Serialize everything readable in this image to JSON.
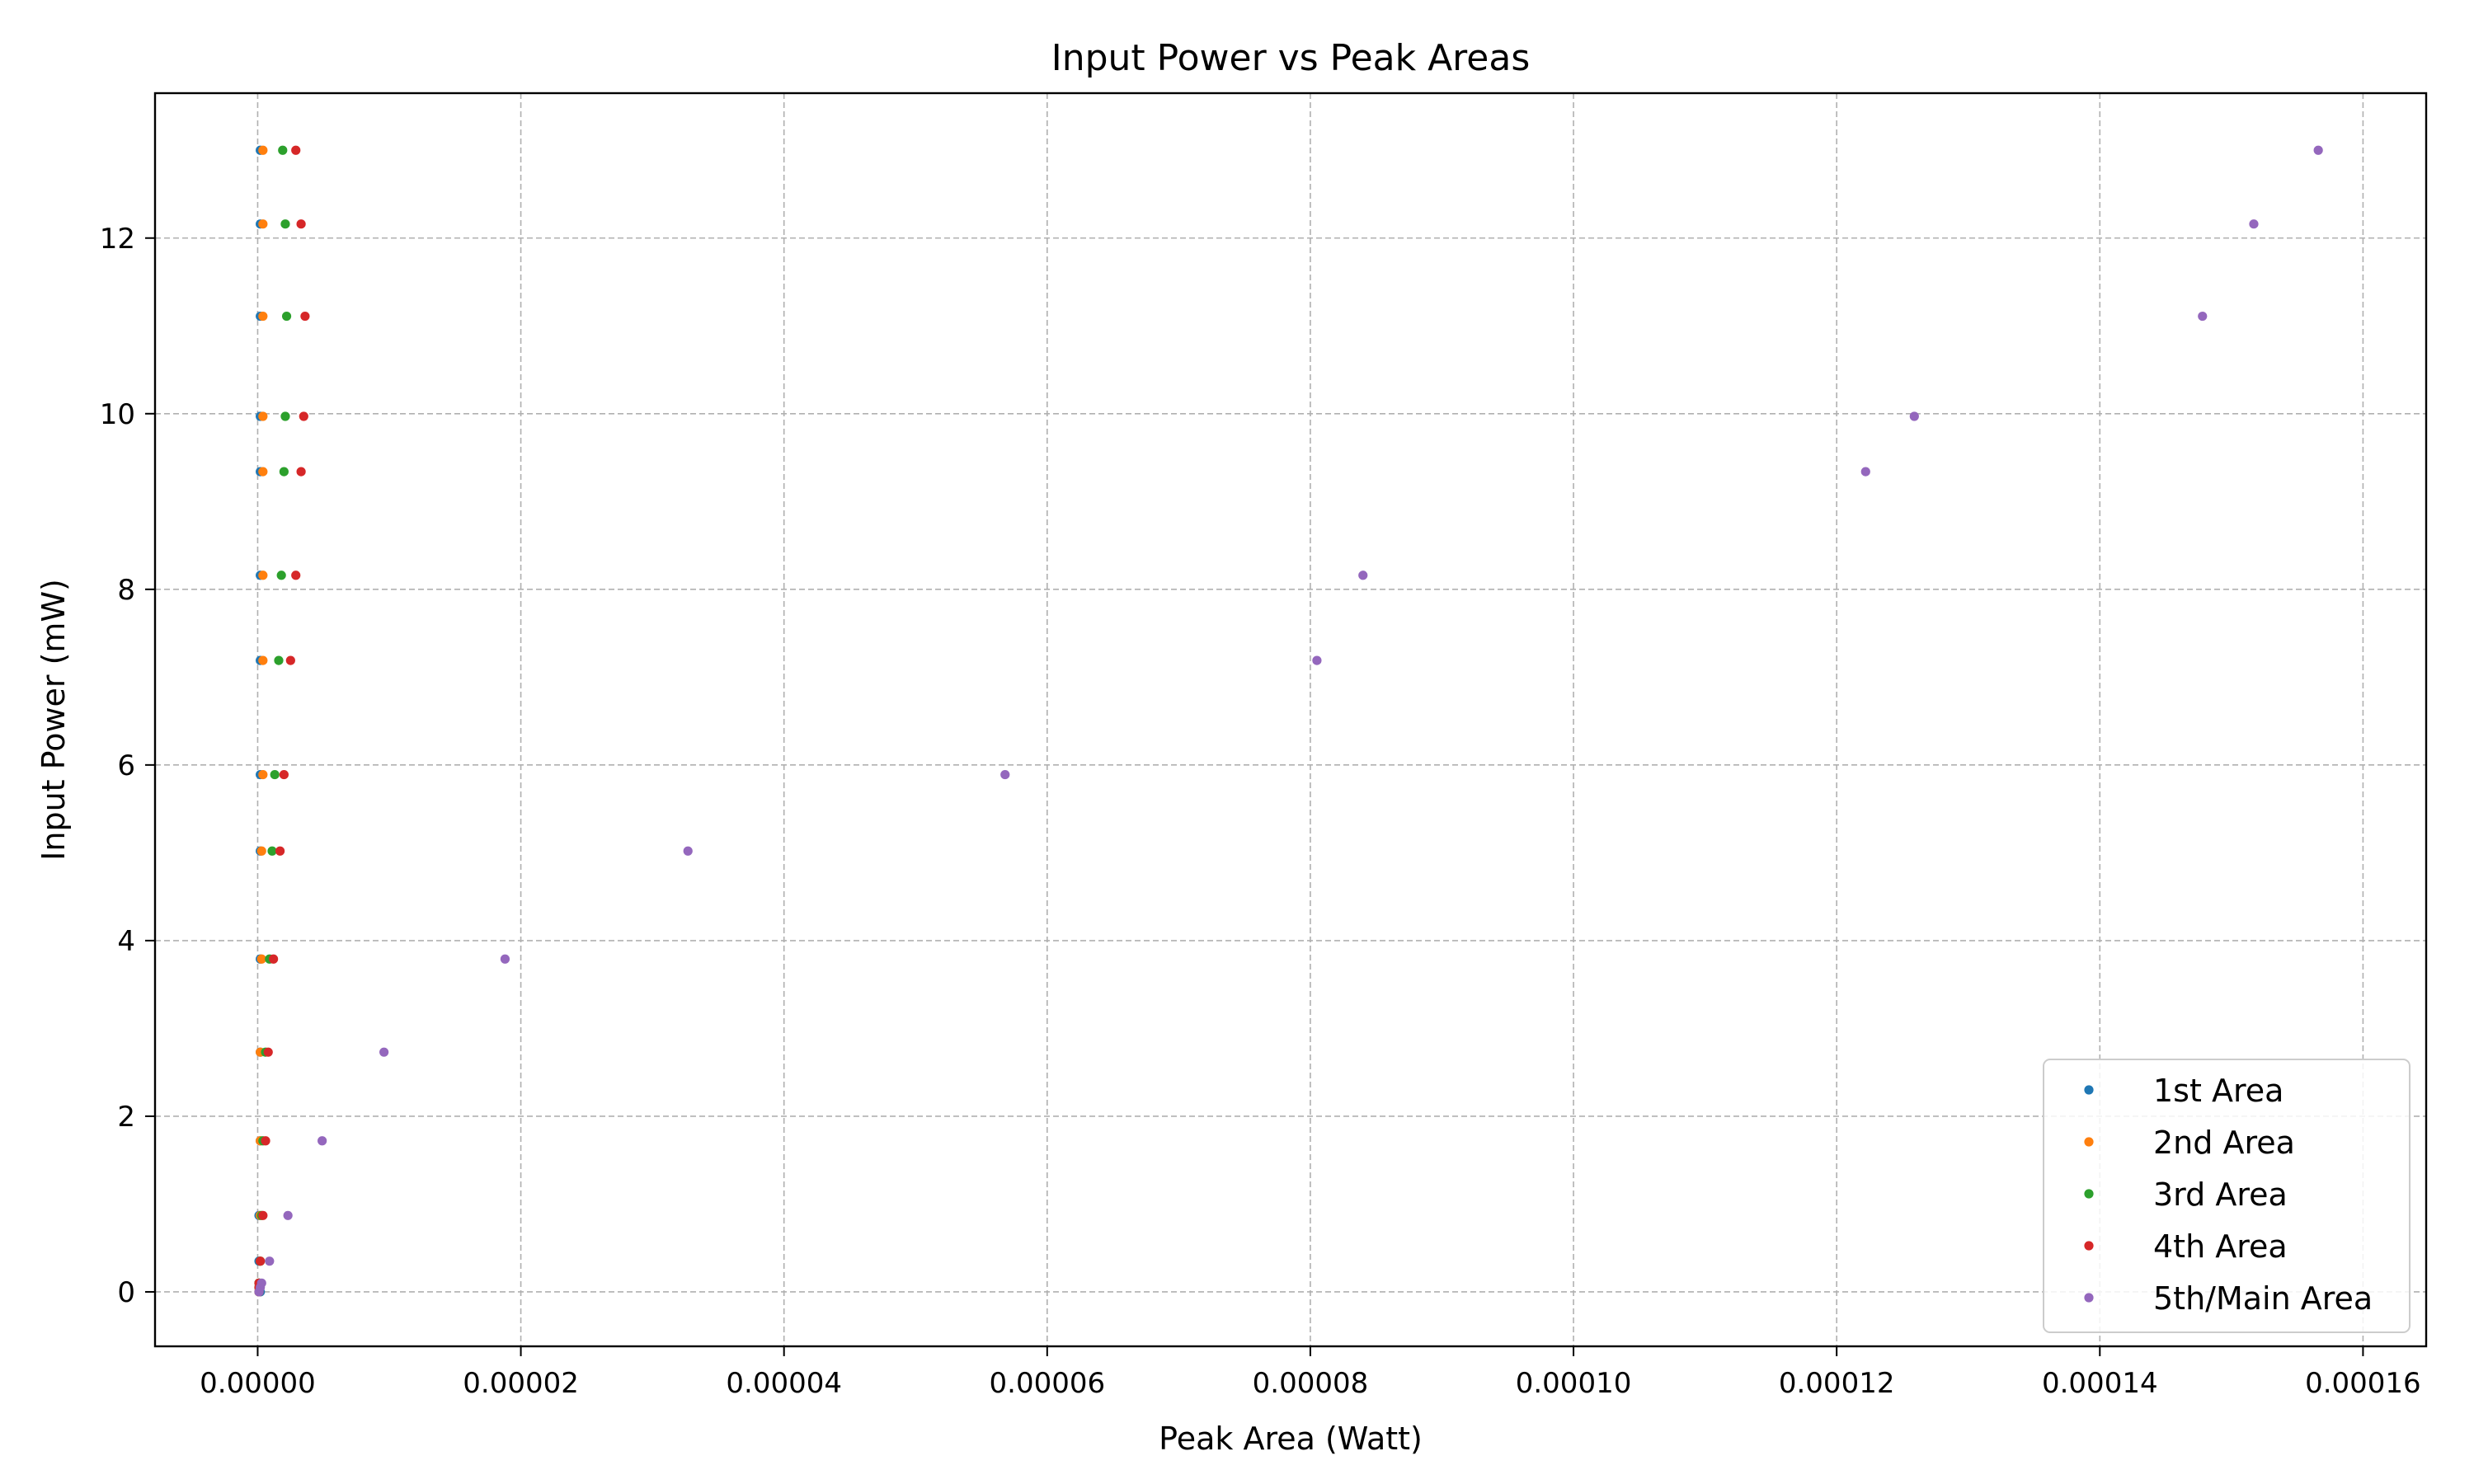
{
  "chart_data": {
    "type": "scatter",
    "title": "Input Power vs Peak Areas",
    "xlabel": "Peak Area (Watt)",
    "ylabel": "Input Power (mW)",
    "xlim": [
      -7.8e-06,
      0.0001648
    ],
    "ylim": [
      -0.62,
      13.65
    ],
    "xticks": [
      0,
      2e-05,
      4e-05,
      6e-05,
      8e-05,
      0.0001,
      0.00012,
      0.00014,
      0.00016
    ],
    "xtick_labels": [
      "0.00000",
      "0.00002",
      "0.00004",
      "0.00006",
      "0.00008",
      "0.00010",
      "0.00012",
      "0.00014",
      "0.00016"
    ],
    "yticks": [
      0,
      2,
      4,
      6,
      8,
      10,
      12
    ],
    "ytick_labels": [
      "0",
      "2",
      "4",
      "6",
      "8",
      "10",
      "12"
    ],
    "grid": true,
    "legend_position": "bottom-right",
    "series": [
      {
        "name": "1st Area",
        "color": "#1f77b4",
        "x": [
          1e-07,
          1e-07,
          1e-07,
          1e-07,
          2e-07,
          2e-07,
          2e-07,
          2e-07,
          2e-07,
          2e-07,
          2e-07,
          2e-07,
          2e-07,
          2e-07,
          2e-07,
          2e-07,
          2e-07
        ],
        "y": [
          0.05,
          0.1,
          0.35,
          0.87,
          1.72,
          2.73,
          3.79,
          5.02,
          5.89,
          7.19,
          8.16,
          9.34,
          9.97,
          11.11,
          12.16,
          13.0,
          0.0
        ]
      },
      {
        "name": "2nd Area",
        "color": "#ff7f0e",
        "x": [
          1e-07,
          1e-07,
          2e-07,
          2e-07,
          2e-07,
          2e-07,
          3e-07,
          3e-07,
          4e-07,
          4e-07,
          4e-07,
          4e-07,
          4e-07,
          4e-07,
          4e-07,
          4e-07,
          1e-07
        ],
        "y": [
          0.05,
          0.1,
          0.35,
          0.87,
          1.72,
          2.73,
          3.79,
          5.02,
          5.89,
          7.19,
          8.16,
          9.34,
          9.97,
          11.11,
          12.16,
          13.0,
          0.0
        ]
      },
      {
        "name": "3rd Area",
        "color": "#2ca02c",
        "x": [
          1e-07,
          1e-07,
          2e-07,
          3e-07,
          4e-07,
          6e-07,
          9e-07,
          1.1e-06,
          1.3e-06,
          1.6e-06,
          1.8e-06,
          2e-06,
          2.1e-06,
          2.2e-06,
          2.1e-06,
          1.9e-06,
          1e-07
        ],
        "y": [
          0.05,
          0.1,
          0.35,
          0.87,
          1.72,
          2.73,
          3.79,
          5.02,
          5.89,
          7.19,
          8.16,
          9.34,
          9.97,
          11.11,
          12.16,
          13.0,
          0.0
        ]
      },
      {
        "name": "4th Area",
        "color": "#d62728",
        "x": [
          1e-07,
          1e-07,
          2e-07,
          4e-07,
          6e-07,
          8e-07,
          1.2e-06,
          1.7e-06,
          2e-06,
          2.5e-06,
          2.9e-06,
          3.3e-06,
          3.5e-06,
          3.6e-06,
          3.3e-06,
          2.9e-06,
          1e-07
        ],
        "y": [
          0.05,
          0.1,
          0.35,
          0.87,
          1.72,
          2.73,
          3.79,
          5.02,
          5.89,
          7.19,
          8.16,
          9.34,
          9.97,
          11.11,
          12.16,
          13.0,
          0.0
        ]
      },
      {
        "name": "5th/Main Area",
        "color": "#9467bd",
        "x": [
          2e-07,
          3e-07,
          9e-07,
          2.3e-06,
          4.9e-06,
          9.6e-06,
          1.88e-05,
          3.27e-05,
          5.68e-05,
          8.05e-05,
          8.4e-05,
          0.0001222,
          0.0001259,
          0.0001478,
          0.0001517,
          0.0001566,
          1e-07
        ],
        "y": [
          0.05,
          0.1,
          0.35,
          0.87,
          1.72,
          2.73,
          3.79,
          5.02,
          5.89,
          7.19,
          8.16,
          9.34,
          9.97,
          11.11,
          12.16,
          13.0,
          0.0
        ]
      }
    ]
  }
}
